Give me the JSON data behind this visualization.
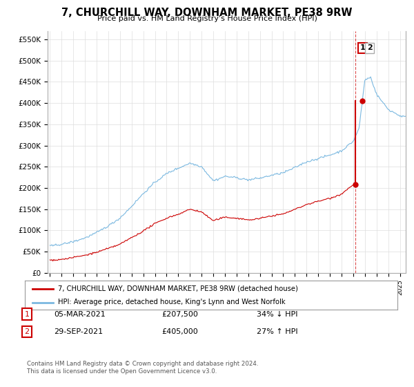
{
  "title": "7, CHURCHILL WAY, DOWNHAM MARKET, PE38 9RW",
  "subtitle": "Price paid vs. HM Land Registry's House Price Index (HPI)",
  "legend_line1": "7, CHURCHILL WAY, DOWNHAM MARKET, PE38 9RW (detached house)",
  "legend_line2": "HPI: Average price, detached house, King's Lynn and West Norfolk",
  "transaction1_date": "05-MAR-2021",
  "transaction1_price": "£207,500",
  "transaction1_hpi": "34% ↓ HPI",
  "transaction2_date": "29-SEP-2021",
  "transaction2_price": "£405,000",
  "transaction2_hpi": "27% ↑ HPI",
  "footer1": "Contains HM Land Registry data © Crown copyright and database right 2024.",
  "footer2": "This data is licensed under the Open Government Licence v3.0.",
  "ylim": [
    0,
    570000
  ],
  "yticks": [
    0,
    50000,
    100000,
    150000,
    200000,
    250000,
    300000,
    350000,
    400000,
    450000,
    500000,
    550000
  ],
  "ytick_labels": [
    "£0",
    "£50K",
    "£100K",
    "£150K",
    "£200K",
    "£250K",
    "£300K",
    "£350K",
    "£400K",
    "£450K",
    "£500K",
    "£550K"
  ],
  "hpi_color": "#7ab8e0",
  "price_color": "#cc0000",
  "grid_color": "#dddddd",
  "background_color": "#ffffff",
  "transaction1_year": 2021.17,
  "transaction1_value": 207500,
  "transaction2_year": 2021.75,
  "transaction2_value": 405000
}
